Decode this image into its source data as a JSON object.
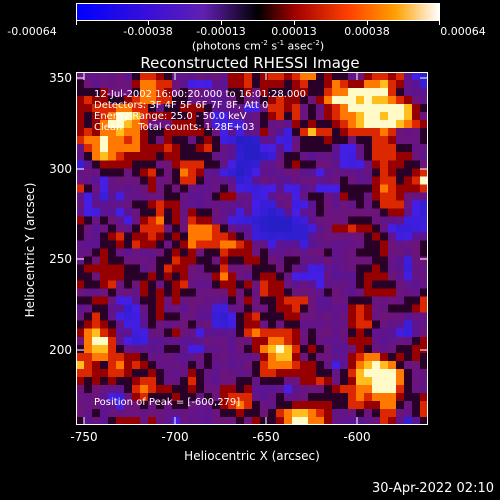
{
  "colorbar": {
    "tick_labels": [
      "-0.00064",
      "-0.00038",
      "-0.00013",
      "0.00013",
      "0.00038",
      "0.00064"
    ],
    "units_prefix": "(photons cm",
    "units_exp1": "-2",
    "units_mid": " s",
    "units_exp2": "-1",
    "units_mid2": " asec",
    "units_exp3": "-2",
    "units_suffix": ")",
    "colors": [
      "#0000ff",
      "#4000c8",
      "#6a1fa0",
      "#9a1010",
      "#ff4000",
      "#ffa000",
      "#ffffe0"
    ]
  },
  "title": "Reconstructed RHESSI Image",
  "annotations": {
    "line1": "12-Jul-2002 16:00:20.000 to 16:01:28.000",
    "line2": "Detectors: 3F 4F 5F 6F 7F 8F, Att 0",
    "line3": "Energy Range: 25.0 - 50.0 keV",
    "line4": "Clean     Total counts: 1.28E+03",
    "peak": "Position of Peak = [-600,279]"
  },
  "axes": {
    "xlabel": "Heliocentric X (arcsec)",
    "ylabel": "Heliocentric Y (arcsec)",
    "xticks": [
      "-750",
      "-700",
      "-650",
      "-600"
    ],
    "yticks": [
      "350",
      "300",
      "250",
      "200"
    ],
    "xlim": [
      -765,
      -572
    ],
    "ylim": [
      156,
      351
    ]
  },
  "footer_date": "30-Apr-2022 02:10"
}
